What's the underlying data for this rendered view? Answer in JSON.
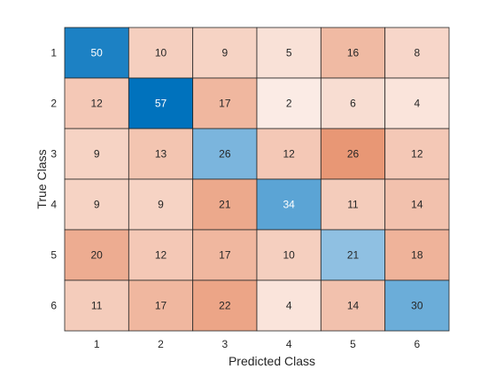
{
  "chart_data": {
    "type": "heatmap",
    "title": "",
    "xlabel": "Predicted Class",
    "ylabel": "True Class",
    "x_categories": [
      "1",
      "2",
      "3",
      "4",
      "5",
      "6"
    ],
    "y_categories": [
      "1",
      "2",
      "3",
      "4",
      "5",
      "6"
    ],
    "matrix": [
      [
        50,
        10,
        9,
        5,
        16,
        8
      ],
      [
        12,
        57,
        17,
        2,
        6,
        4
      ],
      [
        9,
        13,
        26,
        12,
        26,
        12
      ],
      [
        9,
        9,
        21,
        34,
        11,
        14
      ],
      [
        20,
        12,
        17,
        10,
        21,
        18
      ],
      [
        11,
        17,
        22,
        4,
        14,
        30
      ]
    ],
    "colors": {
      "diagonal_low": "#e2eef8",
      "diagonal_high": "#0072bd",
      "off_diagonal_low": "#fdf2ee",
      "off_diagonal_high": "#d95319",
      "grid_line": "#262626",
      "text_dark": "#262626",
      "text_light": "#ffffff"
    }
  }
}
